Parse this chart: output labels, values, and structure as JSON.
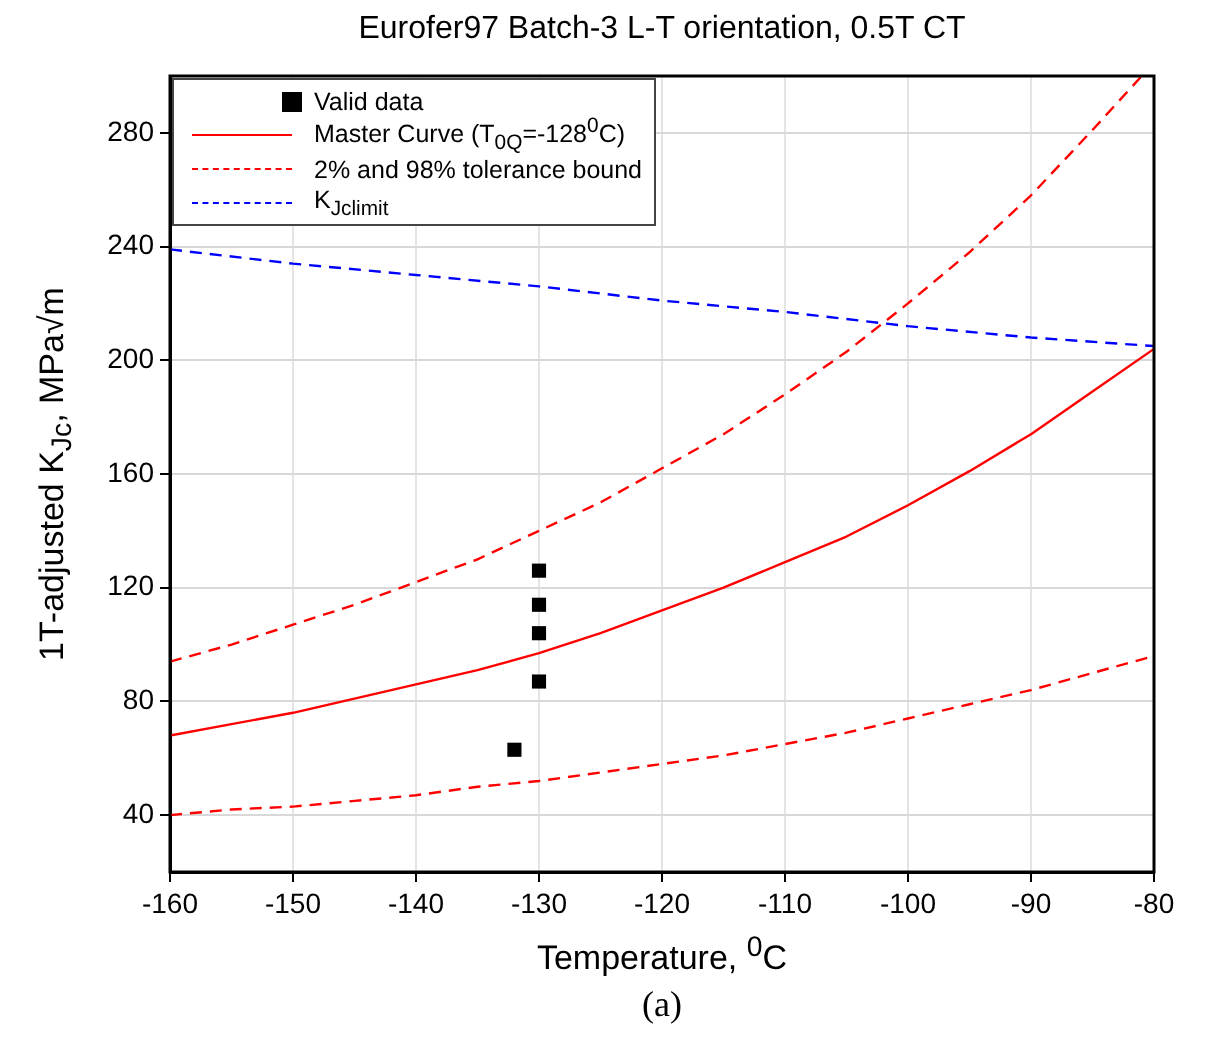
{
  "chart_data": {
    "type": "line",
    "title": "Eurofer97 Batch-3 L-T orientation, 0.5T CT",
    "xlabel": "Temperature, $^{0}$C",
    "ylabel": "1T-adjusted K$_{Jc}$, MPa√m",
    "annotations": [
      "(a)"
    ],
    "xlim": [
      -160,
      -80
    ],
    "xticks": [
      -160,
      -150,
      -140,
      -130,
      -120,
      -110,
      -100,
      -90,
      -80
    ],
    "ylim": [
      20,
      300
    ],
    "yticks": [
      40,
      80,
      120,
      160,
      200,
      240,
      280
    ],
    "grid": true,
    "legend": "top left",
    "series": [
      {
        "name": "Valid data",
        "type": "scatter",
        "marker": "square",
        "color": "#000000",
        "x": [
          -130,
          -130,
          -130,
          -130,
          -132
        ],
        "values": [
          126,
          114,
          104,
          87,
          63
        ]
      },
      {
        "name": "Master Curve (T$_{0Q}$=-128$^{0}$C)",
        "marker": "none",
        "line_style": "solid",
        "color": "#ff0000",
        "x": [
          -160,
          -155,
          -150,
          -145,
          -140,
          -135,
          -130,
          -125,
          -120,
          -115,
          -110,
          -105,
          -100,
          -95,
          -90,
          -85,
          -80
        ],
        "values": [
          68,
          72,
          76,
          81,
          86,
          91,
          97,
          104,
          112,
          120,
          129,
          138,
          149,
          161,
          174,
          189,
          204
        ]
      },
      {
        "name": "2% and 98% tolerance bound",
        "marker": "none",
        "line_style": "dashed",
        "color": "#ff0000",
        "x": [
          -160,
          -155,
          -150,
          -145,
          -140,
          -135,
          -130,
          -125,
          -120,
          -115,
          -110,
          -105,
          -100,
          -95,
          -90,
          -85,
          -81
        ],
        "values": [
          94,
          100,
          107,
          114,
          122,
          130,
          140,
          150,
          162,
          174,
          188,
          203,
          220,
          238,
          258,
          281,
          300
        ]
      },
      {
        "marker": "none",
        "line_style": "dashed",
        "color": "#ff0000",
        "x": [
          -160,
          -155,
          -150,
          -145,
          -140,
          -135,
          -130,
          -125,
          -120,
          -115,
          -110,
          -105,
          -100,
          -95,
          -90,
          -85,
          -80
        ],
        "values": [
          40,
          42,
          43,
          45,
          47,
          50,
          52,
          55,
          58,
          61,
          65,
          69,
          74,
          79,
          84,
          90,
          96
        ]
      },
      {
        "name": "K$_{Jclimit}$",
        "marker": "none",
        "line_style": "dashed",
        "color": "#0000ff",
        "x": [
          -160,
          -150,
          -140,
          -130,
          -120,
          -110,
          -100,
          -90,
          -80
        ],
        "values": [
          239,
          234,
          230,
          226,
          221,
          217,
          212,
          208,
          205
        ]
      }
    ]
  }
}
